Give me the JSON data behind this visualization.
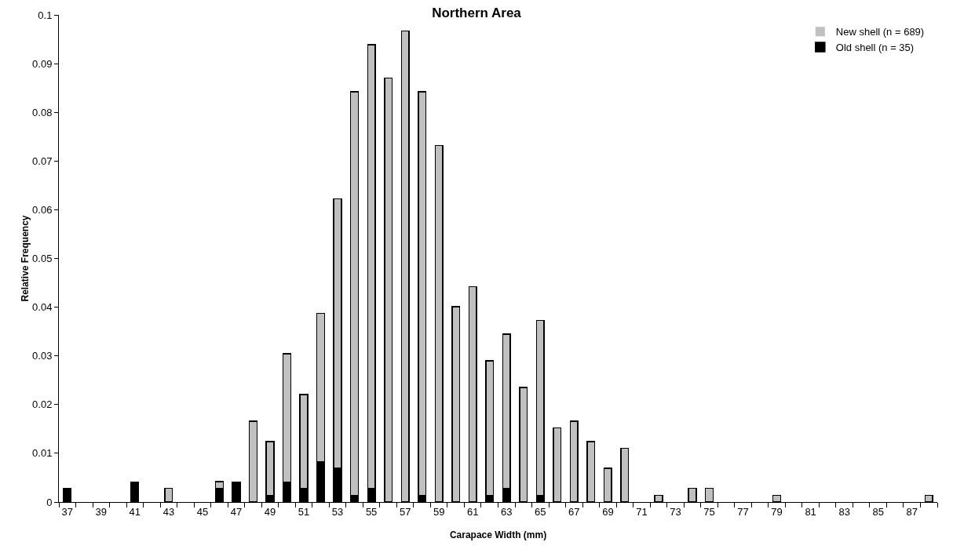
{
  "chart_data": {
    "type": "bar",
    "title": "Northern Area",
    "xlabel": "Carapace Width (mm)",
    "ylabel": "Relative Frequency",
    "categories": [
      "37",
      null,
      "39",
      null,
      "41",
      null,
      "43",
      null,
      "45",
      null,
      "47",
      null,
      "49",
      null,
      "51",
      null,
      "53",
      null,
      "55",
      null,
      "57",
      null,
      "59",
      null,
      "61",
      null,
      "63",
      null,
      "65",
      null,
      "67",
      null,
      "69",
      null,
      "71",
      null,
      "73",
      null,
      "75",
      null,
      "77",
      null,
      "79",
      null,
      "81",
      null,
      "83",
      null,
      "85",
      null,
      "87",
      null
    ],
    "stacked": true,
    "series": [
      {
        "name": "Old shell (n = 35)",
        "color": "#000000",
        "values": [
          0.0028,
          0,
          0,
          0,
          0.0041,
          0,
          0,
          0,
          0,
          0.0028,
          0.0041,
          0,
          0.0014,
          0.0041,
          0.0028,
          0.0083,
          0.0069,
          0.0014,
          0.0028,
          0,
          0,
          0.0014,
          0,
          0,
          0,
          0.0014,
          0.0028,
          0,
          0.0014,
          0,
          0,
          0,
          0,
          0,
          0,
          0,
          0,
          0,
          0,
          0,
          0,
          0,
          0,
          0,
          0,
          0,
          0,
          0,
          0,
          0,
          0,
          0
        ]
      },
      {
        "name": "New shell (n = 689)",
        "color": "#c0c0c0",
        "values": [
          0,
          0,
          0,
          0,
          0,
          0,
          0.0028,
          0,
          0,
          0.0014,
          0,
          0.0166,
          0.011,
          0.0263,
          0.0193,
          0.0304,
          0.0553,
          0.0828,
          0.0911,
          0.087,
          0.0967,
          0.0828,
          0.0732,
          0.0401,
          0.0442,
          0.0276,
          0.0317,
          0.0235,
          0.0359,
          0.0152,
          0.0166,
          0.0124,
          0.0069,
          0.011,
          0,
          0.0014,
          0,
          0.0028,
          0.0028,
          0,
          0,
          0,
          0.0014,
          0,
          0,
          0,
          0,
          0,
          0,
          0,
          0,
          0.0014
        ]
      }
    ],
    "ylim": [
      0,
      0.1
    ],
    "yticks": [
      0,
      0.01,
      0.02,
      0.03,
      0.04,
      0.05,
      0.06,
      0.07,
      0.08,
      0.09,
      0.1
    ],
    "grid": false,
    "legend": "top right"
  }
}
